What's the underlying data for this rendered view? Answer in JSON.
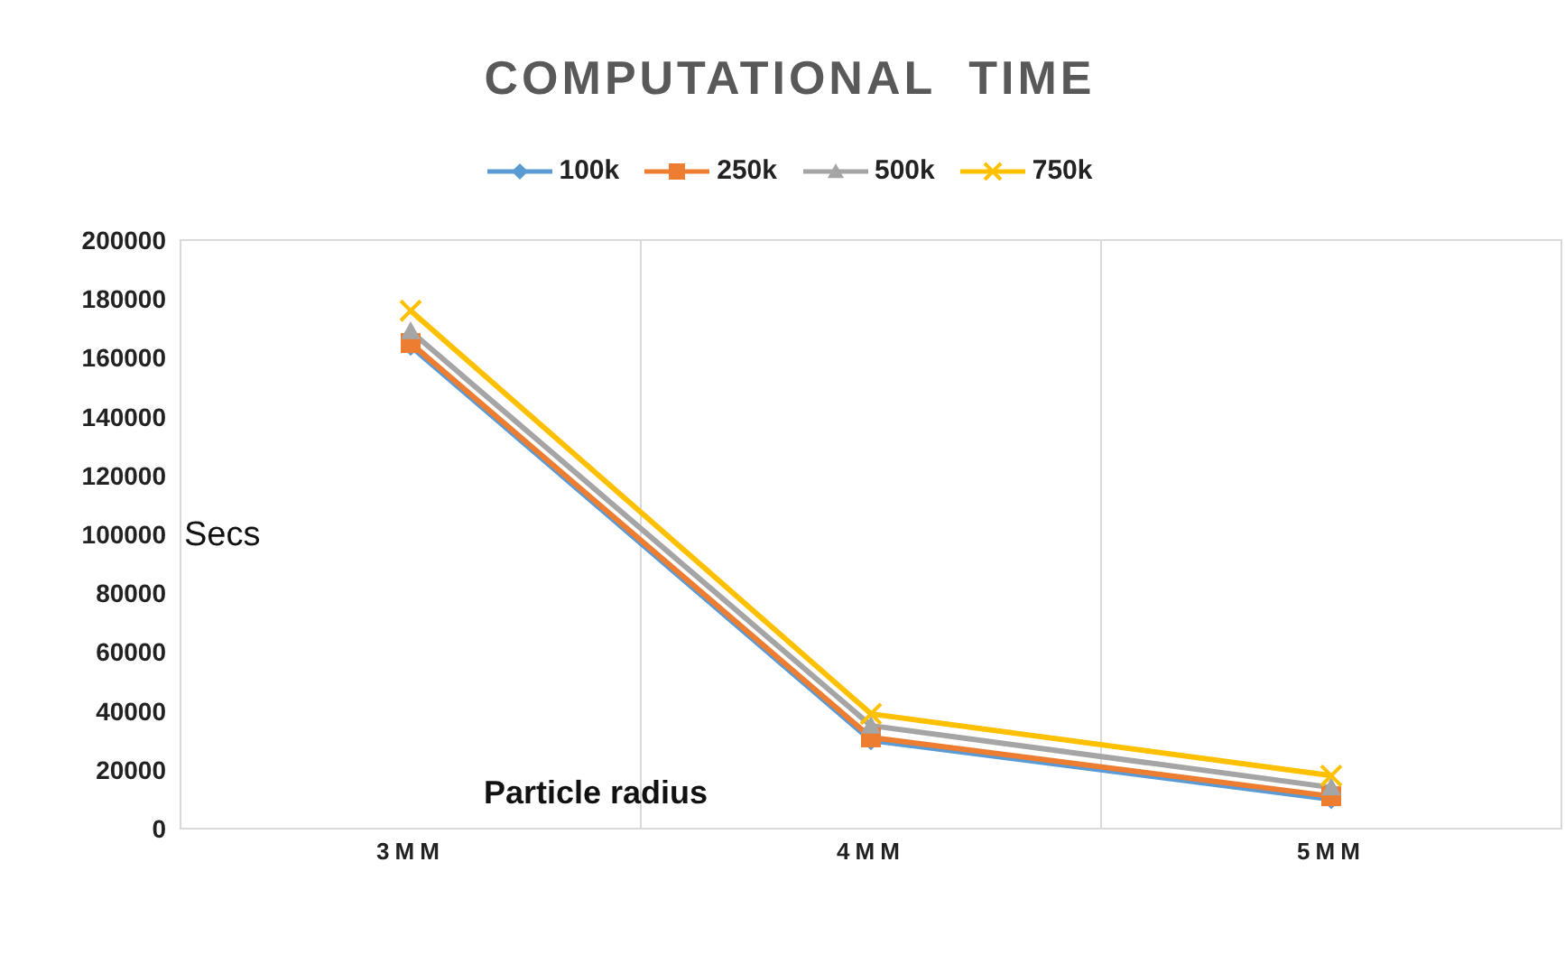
{
  "chart_data": {
    "type": "line",
    "title": "COMPUTATIONAL  TIME",
    "xlabel": "Particle radius",
    "ylabel": "Secs",
    "categories": [
      "3MM",
      "4MM",
      "5MM"
    ],
    "ylim": [
      0,
      200000
    ],
    "yticks": [
      0,
      20000,
      40000,
      60000,
      80000,
      100000,
      120000,
      140000,
      160000,
      180000,
      200000
    ],
    "legend": "top",
    "series": [
      {
        "name": "100k",
        "color": "#5b9bd5",
        "marker": "diamond",
        "values": [
          164000,
          30000,
          10000
        ]
      },
      {
        "name": "250k",
        "color": "#ed7d31",
        "marker": "square",
        "values": [
          165000,
          31000,
          11000
        ]
      },
      {
        "name": "500k",
        "color": "#a5a5a5",
        "marker": "triangle",
        "values": [
          169000,
          35000,
          14000
        ]
      },
      {
        "name": "750k",
        "color": "#ffc000",
        "marker": "cross",
        "values": [
          176000,
          39000,
          18000
        ]
      }
    ]
  }
}
